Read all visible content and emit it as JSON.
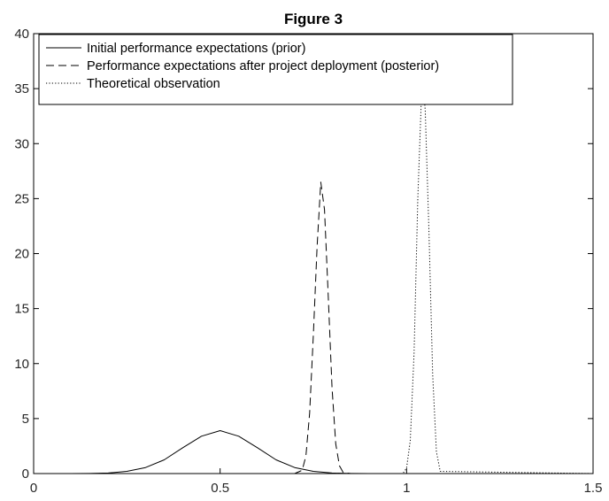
{
  "chart_data": {
    "type": "line",
    "title": "Figure 3",
    "xlabel": "",
    "ylabel": "",
    "xlim": [
      0,
      1.5
    ],
    "ylim": [
      0,
      40
    ],
    "x_ticks": [
      0,
      0.5,
      1,
      1.5
    ],
    "x_tick_labels": [
      "0",
      "0.5",
      "1",
      "1.5"
    ],
    "y_ticks": [
      0,
      5,
      10,
      15,
      20,
      25,
      30,
      35,
      40
    ],
    "y_tick_labels": [
      "0",
      "5",
      "10",
      "15",
      "20",
      "25",
      "30",
      "35",
      "40"
    ],
    "grid": false,
    "legend_position": "top-left",
    "series": [
      {
        "name": "Initial performance expectations (prior)",
        "line_style": "solid",
        "color": "#000000",
        "x": [
          0.0,
          0.05,
          0.1,
          0.15,
          0.2,
          0.25,
          0.3,
          0.35,
          0.4,
          0.45,
          0.5,
          0.55,
          0.6,
          0.65,
          0.7,
          0.75,
          0.8,
          0.85,
          0.9,
          0.95,
          1.0,
          1.5
        ],
        "y": [
          0.0,
          0.0,
          0.0,
          0.01,
          0.05,
          0.2,
          0.55,
          1.25,
          2.35,
          3.4,
          3.9,
          3.4,
          2.35,
          1.25,
          0.55,
          0.2,
          0.05,
          0.01,
          0.0,
          0.0,
          0.0,
          0.0
        ]
      },
      {
        "name": "Performance expectations after project deployment (posterior)",
        "line_style": "dashed",
        "color": "#000000",
        "x": [
          0.0,
          0.7,
          0.72,
          0.73,
          0.74,
          0.75,
          0.76,
          0.77,
          0.78,
          0.79,
          0.8,
          0.81,
          0.82,
          0.83,
          0.85,
          1.5
        ],
        "y": [
          0.0,
          0.0,
          0.3,
          1.6,
          5.5,
          12.6,
          20.6,
          26.5,
          24.0,
          16.0,
          7.8,
          2.7,
          0.7,
          0.1,
          0.0,
          0.0
        ]
      },
      {
        "name": "Theoretical observation",
        "line_style": "dotted",
        "color": "#000000",
        "x": [
          0.0,
          0.99,
          1.0,
          1.01,
          1.02,
          1.03,
          1.04,
          1.045,
          1.05,
          1.06,
          1.07,
          1.08,
          1.09,
          1.5
        ],
        "y": [
          0.0,
          0.0,
          0.5,
          3.0,
          11.0,
          25.0,
          34.5,
          35.2,
          33.0,
          22.0,
          9.0,
          2.0,
          0.2,
          0.0
        ]
      }
    ]
  }
}
